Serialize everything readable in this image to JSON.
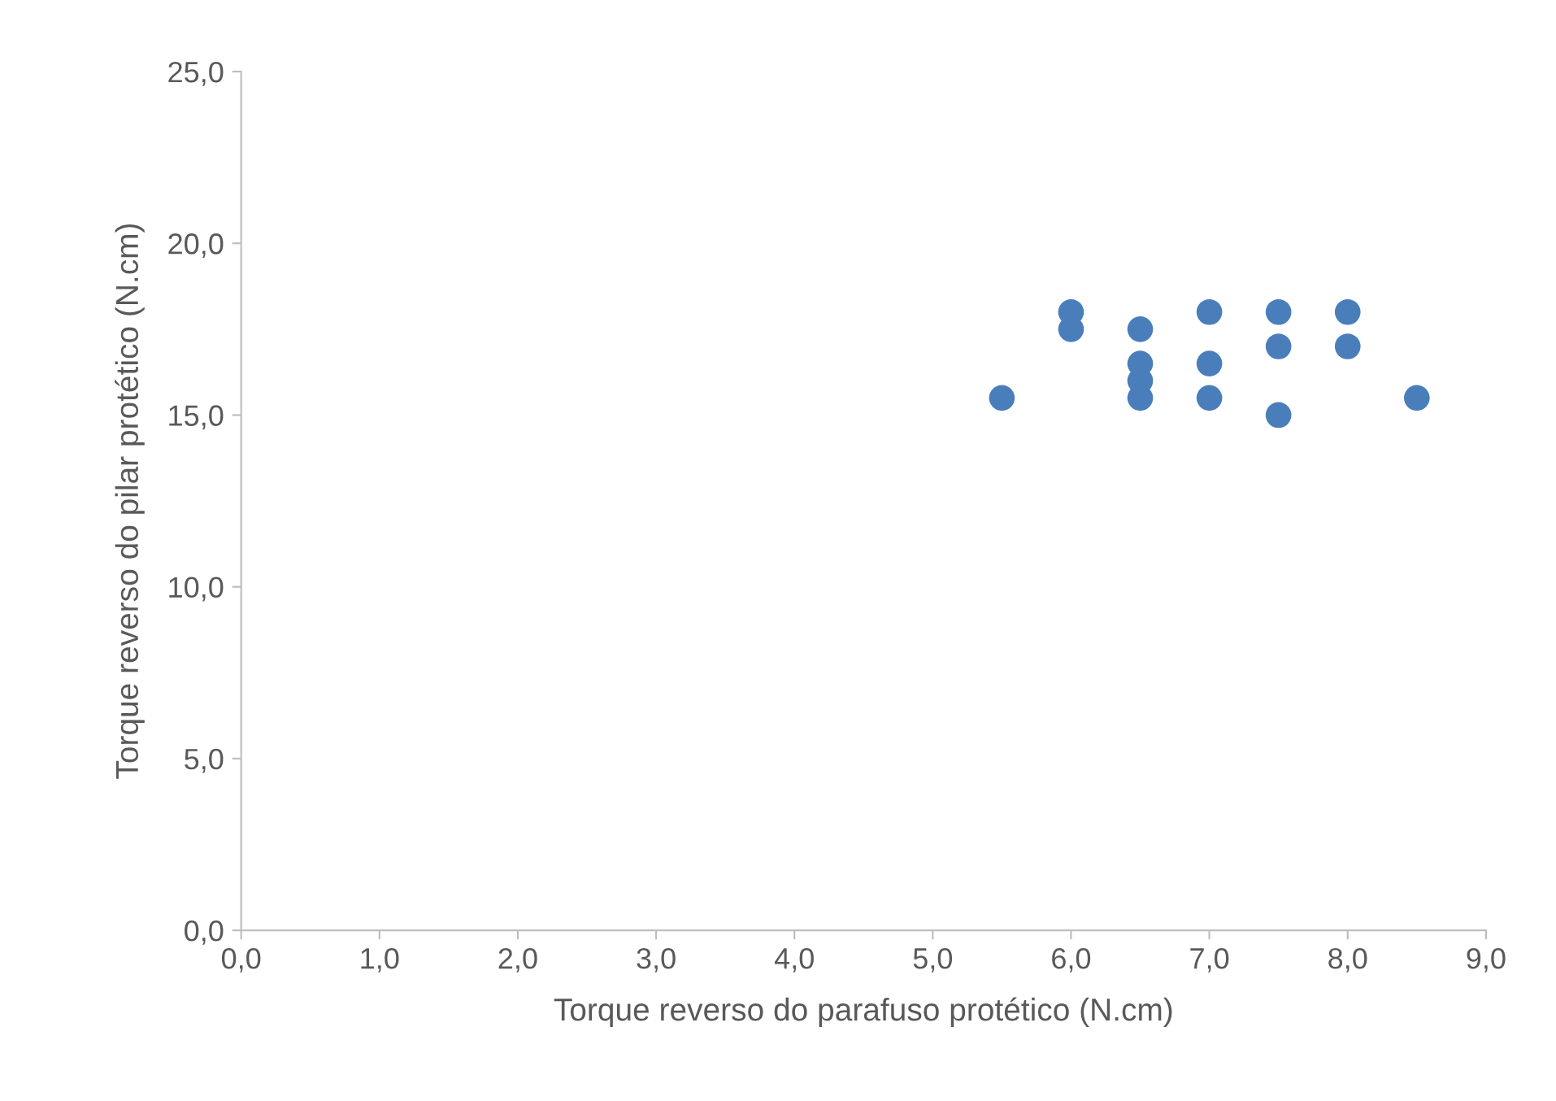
{
  "chart_data": {
    "type": "scatter",
    "xlabel": "Torque reverso do parafuso protético (N.cm)",
    "ylabel": "Torque reverso do pilar protético (N.cm)",
    "x": [
      5.5,
      6.0,
      6.0,
      6.5,
      6.5,
      6.5,
      6.5,
      7.0,
      7.0,
      7.0,
      7.5,
      7.5,
      7.5,
      8.0,
      8.0,
      8.5
    ],
    "values": [
      15.5,
      18.0,
      17.5,
      17.5,
      16.5,
      16.0,
      15.5,
      18.0,
      16.5,
      15.5,
      18.0,
      17.0,
      15.0,
      18.0,
      17.0,
      15.5
    ],
    "color": "#4a7ebb",
    "marker": "circle",
    "grid": false,
    "legend": false,
    "xlim": [
      0,
      9
    ],
    "ylim": [
      0,
      25
    ],
    "xticks": [
      {
        "value": 0,
        "label": "0,0"
      },
      {
        "value": 1,
        "label": "1,0"
      },
      {
        "value": 2,
        "label": "2,0"
      },
      {
        "value": 3,
        "label": "3,0"
      },
      {
        "value": 4,
        "label": "4,0"
      },
      {
        "value": 5,
        "label": "5,0"
      },
      {
        "value": 6,
        "label": "6,0"
      },
      {
        "value": 7,
        "label": "7,0"
      },
      {
        "value": 8,
        "label": "8,0"
      },
      {
        "value": 9,
        "label": "9,0"
      }
    ],
    "yticks": [
      {
        "value": 0,
        "label": "0,0"
      },
      {
        "value": 5,
        "label": "5,0"
      },
      {
        "value": 10,
        "label": "10,0"
      },
      {
        "value": 15,
        "label": "15,0"
      },
      {
        "value": 20,
        "label": "20,0"
      },
      {
        "value": 25,
        "label": "25,0"
      }
    ]
  }
}
